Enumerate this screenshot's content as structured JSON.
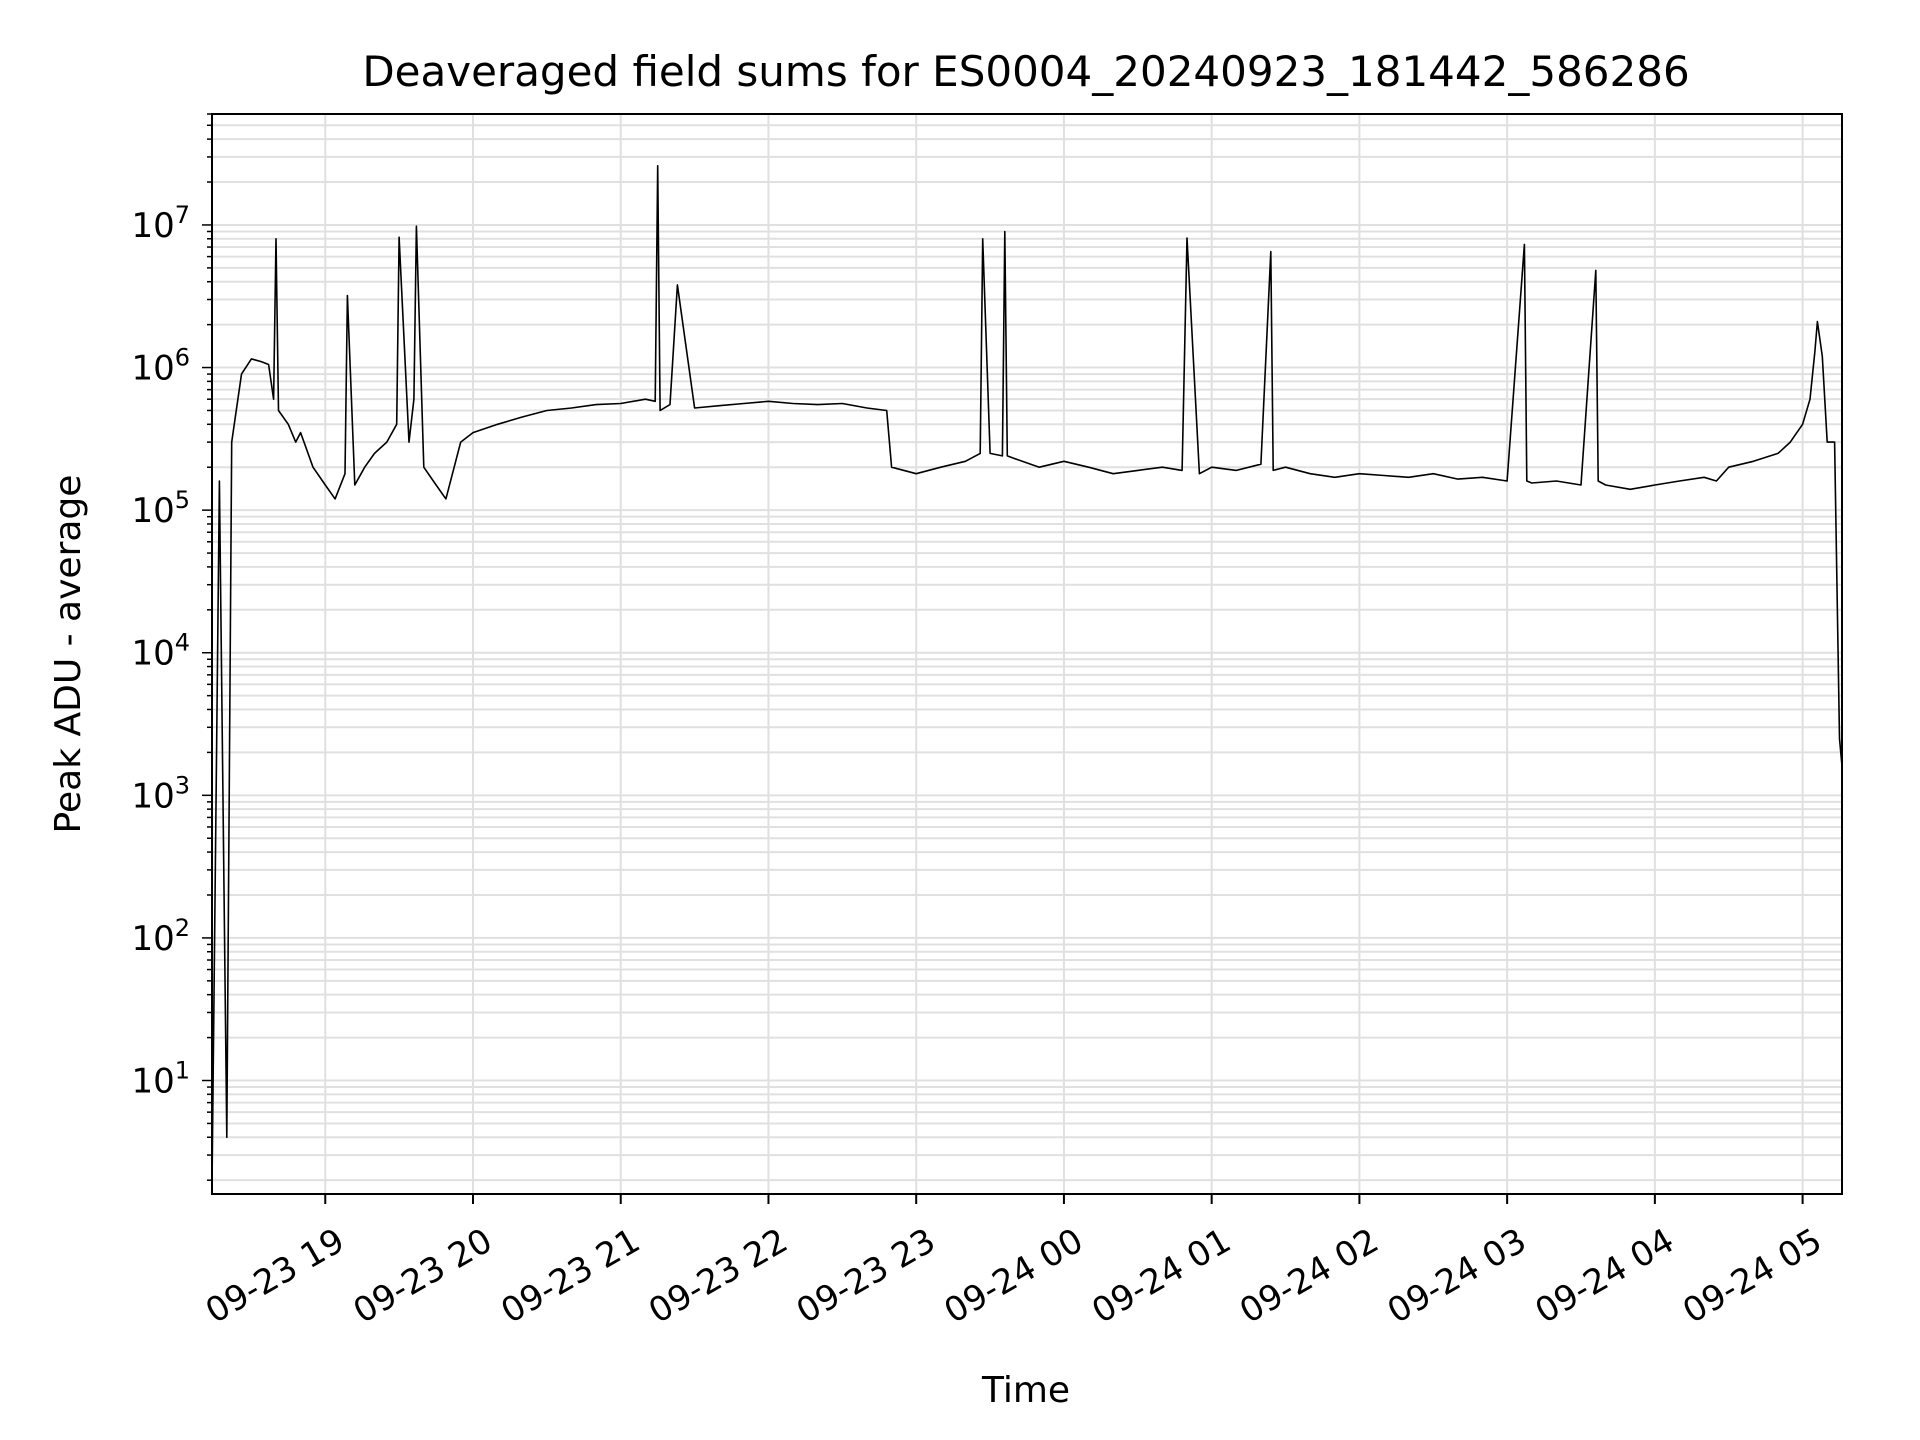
{
  "chart_data": {
    "type": "line",
    "title": "Deaveraged field sums for ES0004_20240923_181442_586286",
    "xlabel": "Time",
    "ylabel": "Peak ADU - average",
    "yscale": "log",
    "ylim": [
      1.6,
      60000000
    ],
    "xlim": [
      "2024-09-23 18:14",
      "2024-09-24 05:16"
    ],
    "grid": true,
    "x_ticks": [
      {
        "value": "2024-09-23 19:00",
        "label": "09-23 19"
      },
      {
        "value": "2024-09-23 20:00",
        "label": "09-23 20"
      },
      {
        "value": "2024-09-23 21:00",
        "label": "09-23 21"
      },
      {
        "value": "2024-09-23 22:00",
        "label": "09-23 22"
      },
      {
        "value": "2024-09-23 23:00",
        "label": "09-23 23"
      },
      {
        "value": "2024-09-24 00:00",
        "label": "09-24 00"
      },
      {
        "value": "2024-09-24 01:00",
        "label": "09-24 01"
      },
      {
        "value": "2024-09-24 02:00",
        "label": "09-24 02"
      },
      {
        "value": "2024-09-24 03:00",
        "label": "09-24 03"
      },
      {
        "value": "2024-09-24 04:00",
        "label": "09-24 04"
      },
      {
        "value": "2024-09-24 05:00",
        "label": "09-24 05"
      }
    ],
    "y_ticks": [
      {
        "value": 10,
        "base": "10",
        "exp": "1"
      },
      {
        "value": 100,
        "base": "10",
        "exp": "2"
      },
      {
        "value": 1000,
        "base": "10",
        "exp": "3"
      },
      {
        "value": 10000,
        "base": "10",
        "exp": "4"
      },
      {
        "value": 100000,
        "base": "10",
        "exp": "5"
      },
      {
        "value": 1000000,
        "base": "10",
        "exp": "6"
      },
      {
        "value": 10000000,
        "base": "10",
        "exp": "7"
      }
    ],
    "line_color": "#000000",
    "grid_color": "#e0e0e0",
    "series": [
      {
        "x": [
          "2024-09-23 18:14",
          "2024-09-23 18:17",
          "2024-09-23 18:20",
          "2024-09-23 18:22",
          "2024-09-23 18:26",
          "2024-09-23 18:30",
          "2024-09-23 18:34",
          "2024-09-23 18:37",
          "2024-09-23 18:39",
          "2024-09-23 18:40",
          "2024-09-23 18:41",
          "2024-09-23 18:45",
          "2024-09-23 18:48",
          "2024-09-23 18:50",
          "2024-09-23 18:55",
          "2024-09-23 19:00",
          "2024-09-23 19:04",
          "2024-09-23 19:08",
          "2024-09-23 19:09",
          "2024-09-23 19:12",
          "2024-09-23 19:16",
          "2024-09-23 19:20",
          "2024-09-23 19:25",
          "2024-09-23 19:29",
          "2024-09-23 19:30",
          "2024-09-23 19:34",
          "2024-09-23 19:36",
          "2024-09-23 19:37",
          "2024-09-23 19:40",
          "2024-09-23 19:45",
          "2024-09-23 19:49",
          "2024-09-23 19:55",
          "2024-09-23 20:00",
          "2024-09-23 20:10",
          "2024-09-23 20:20",
          "2024-09-23 20:30",
          "2024-09-23 20:40",
          "2024-09-23 20:50",
          "2024-09-23 21:00",
          "2024-09-23 21:10",
          "2024-09-23 21:14",
          "2024-09-23 21:15",
          "2024-09-23 21:16",
          "2024-09-23 21:20",
          "2024-09-23 21:23",
          "2024-09-23 21:30",
          "2024-09-23 21:40",
          "2024-09-23 21:50",
          "2024-09-23 22:00",
          "2024-09-23 22:10",
          "2024-09-23 22:20",
          "2024-09-23 22:30",
          "2024-09-23 22:40",
          "2024-09-23 22:48",
          "2024-09-23 22:50",
          "2024-09-23 23:00",
          "2024-09-23 23:10",
          "2024-09-23 23:20",
          "2024-09-23 23:26",
          "2024-09-23 23:27",
          "2024-09-23 23:30",
          "2024-09-23 23:35",
          "2024-09-23 23:36",
          "2024-09-23 23:37",
          "2024-09-23 23:40",
          "2024-09-23 23:50",
          "2024-09-24 00:00",
          "2024-09-24 00:10",
          "2024-09-24 00:20",
          "2024-09-24 00:30",
          "2024-09-24 00:40",
          "2024-09-24 00:48",
          "2024-09-24 00:50",
          "2024-09-24 00:55",
          "2024-09-24 01:00",
          "2024-09-24 01:10",
          "2024-09-24 01:20",
          "2024-09-24 01:24",
          "2024-09-24 01:25",
          "2024-09-24 01:30",
          "2024-09-24 01:40",
          "2024-09-24 01:50",
          "2024-09-24 02:00",
          "2024-09-24 02:10",
          "2024-09-24 02:20",
          "2024-09-24 02:30",
          "2024-09-24 02:40",
          "2024-09-24 02:50",
          "2024-09-24 03:00",
          "2024-09-24 03:07",
          "2024-09-24 03:08",
          "2024-09-24 03:10",
          "2024-09-24 03:20",
          "2024-09-24 03:30",
          "2024-09-24 03:36",
          "2024-09-24 03:37",
          "2024-09-24 03:40",
          "2024-09-24 03:50",
          "2024-09-24 04:00",
          "2024-09-24 04:10",
          "2024-09-24 04:20",
          "2024-09-24 04:25",
          "2024-09-24 04:30",
          "2024-09-24 04:40",
          "2024-09-24 04:50",
          "2024-09-24 04:55",
          "2024-09-24 05:00",
          "2024-09-24 05:03",
          "2024-09-24 05:05",
          "2024-09-24 05:06",
          "2024-09-24 05:08",
          "2024-09-24 05:10",
          "2024-09-24 05:13",
          "2024-09-24 05:15",
          "2024-09-24 05:16"
        ],
        "y": [
          1.8,
          160000,
          4,
          300000,
          900000,
          1150000,
          1100000,
          1050000,
          600000,
          8000000,
          500000,
          400000,
          300000,
          350000,
          200000,
          150000,
          120000,
          180000,
          3200000,
          150000,
          200000,
          250000,
          300000,
          400000,
          8200000,
          300000,
          600000,
          9800000,
          200000,
          150000,
          120000,
          300000,
          350000,
          400000,
          450000,
          500000,
          520000,
          550000,
          560000,
          600000,
          580000,
          26000000,
          500000,
          550000,
          3800000,
          520000,
          540000,
          560000,
          580000,
          560000,
          550000,
          560000,
          520000,
          500000,
          200000,
          180000,
          200000,
          220000,
          250000,
          8000000,
          250000,
          240000,
          9000000,
          240000,
          230000,
          200000,
          220000,
          200000,
          180000,
          190000,
          200000,
          190000,
          8100000,
          180000,
          200000,
          190000,
          210000,
          6500000,
          190000,
          200000,
          180000,
          170000,
          180000,
          175000,
          170000,
          180000,
          165000,
          170000,
          160000,
          7300000,
          160000,
          155000,
          160000,
          150000,
          4800000,
          160000,
          150000,
          140000,
          150000,
          160000,
          170000,
          160000,
          200000,
          220000,
          250000,
          300000,
          400000,
          600000,
          1300000,
          2100000,
          1200000,
          300000,
          300000,
          2500,
          1600
        ]
      }
    ]
  }
}
